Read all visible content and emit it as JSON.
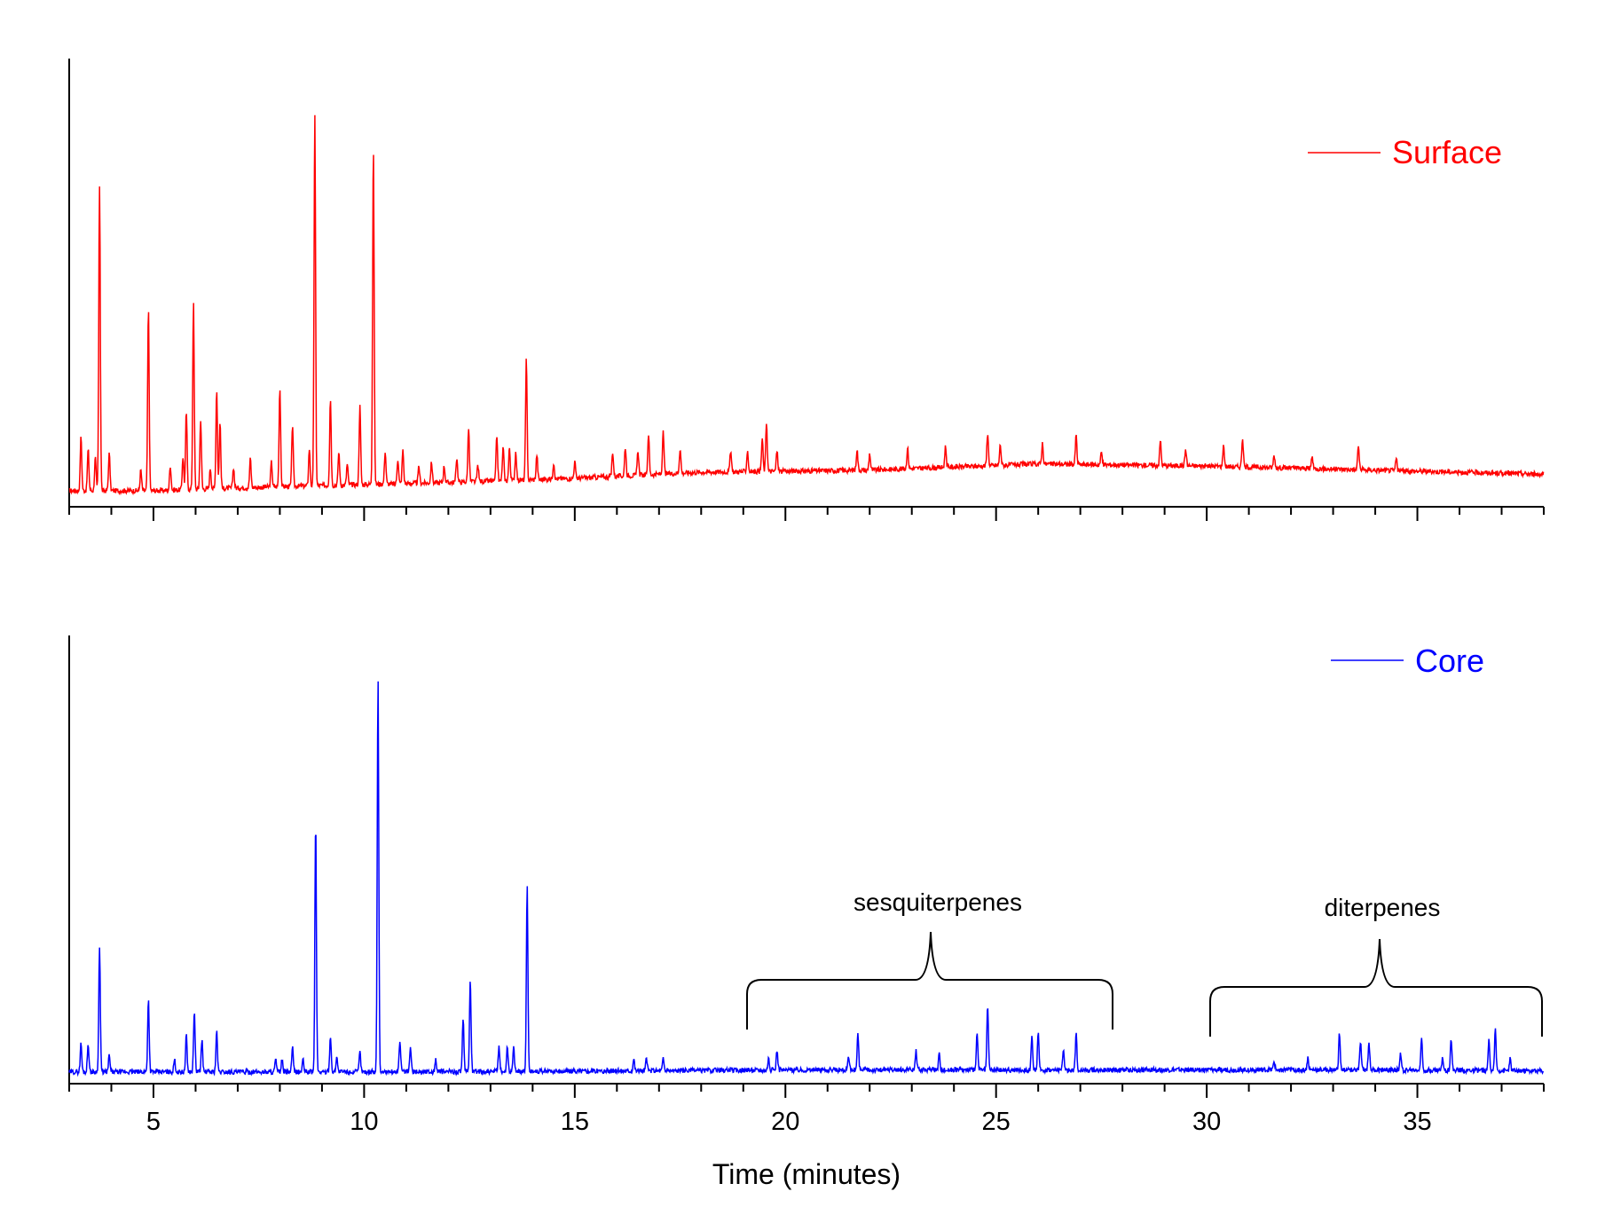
{
  "chart_data": [
    {
      "type": "line",
      "panel": "top",
      "series": [
        {
          "name": "Surface",
          "color": "#ff0000",
          "baseline": [
            [
              3.0,
              0.02
            ],
            [
              5,
              0.02
            ],
            [
              8,
              0.03
            ],
            [
              12,
              0.04
            ],
            [
              15,
              0.05
            ],
            [
              18,
              0.065
            ],
            [
              22,
              0.07
            ],
            [
              26,
              0.085
            ],
            [
              30,
              0.08
            ],
            [
              34,
              0.07
            ],
            [
              38,
              0.06
            ]
          ],
          "peaks": [
            [
              3.28,
              0.13
            ],
            [
              3.45,
              0.1
            ],
            [
              3.62,
              0.08
            ],
            [
              3.72,
              0.74
            ],
            [
              3.95,
              0.09
            ],
            [
              4.7,
              0.05
            ],
            [
              4.88,
              0.44
            ],
            [
              5.4,
              0.06
            ],
            [
              5.7,
              0.08
            ],
            [
              5.78,
              0.19
            ],
            [
              5.95,
              0.45
            ],
            [
              6.12,
              0.17
            ],
            [
              6.35,
              0.05
            ],
            [
              6.5,
              0.24
            ],
            [
              6.58,
              0.16
            ],
            [
              6.9,
              0.05
            ],
            [
              7.3,
              0.07
            ],
            [
              7.8,
              0.06
            ],
            [
              8.0,
              0.24
            ],
            [
              8.3,
              0.15
            ],
            [
              8.7,
              0.09
            ],
            [
              8.83,
              0.9
            ],
            [
              9.2,
              0.21
            ],
            [
              9.4,
              0.08
            ],
            [
              9.6,
              0.05
            ],
            [
              9.9,
              0.19
            ],
            [
              10.22,
              0.82
            ],
            [
              10.5,
              0.08
            ],
            [
              10.8,
              0.06
            ],
            [
              10.92,
              0.08
            ],
            [
              11.3,
              0.04
            ],
            [
              11.6,
              0.05
            ],
            [
              11.9,
              0.04
            ],
            [
              12.2,
              0.06
            ],
            [
              12.48,
              0.13
            ],
            [
              12.7,
              0.04
            ],
            [
              13.15,
              0.11
            ],
            [
              13.3,
              0.08
            ],
            [
              13.45,
              0.08
            ],
            [
              13.6,
              0.07
            ],
            [
              13.85,
              0.29
            ],
            [
              14.1,
              0.06
            ],
            [
              14.5,
              0.04
            ],
            [
              15.0,
              0.04
            ],
            [
              15.9,
              0.06
            ],
            [
              16.2,
              0.07
            ],
            [
              16.5,
              0.06
            ],
            [
              16.75,
              0.1
            ],
            [
              17.1,
              0.1
            ],
            [
              17.5,
              0.06
            ],
            [
              18.7,
              0.05
            ],
            [
              19.1,
              0.05
            ],
            [
              19.45,
              0.08
            ],
            [
              19.55,
              0.12
            ],
            [
              19.8,
              0.05
            ],
            [
              21.7,
              0.05
            ],
            [
              22.0,
              0.04
            ],
            [
              22.9,
              0.05
            ],
            [
              23.8,
              0.05
            ],
            [
              24.8,
              0.08
            ],
            [
              25.1,
              0.05
            ],
            [
              26.1,
              0.05
            ],
            [
              26.9,
              0.07
            ],
            [
              27.5,
              0.03
            ],
            [
              28.9,
              0.06
            ],
            [
              29.5,
              0.04
            ],
            [
              30.4,
              0.05
            ],
            [
              30.85,
              0.07
            ],
            [
              31.6,
              0.03
            ],
            [
              32.5,
              0.03
            ],
            [
              33.6,
              0.06
            ],
            [
              34.5,
              0.03
            ]
          ]
        }
      ],
      "xlim": [
        3,
        38
      ],
      "ylim": [
        0,
        1
      ]
    },
    {
      "type": "line",
      "panel": "bottom",
      "series": [
        {
          "name": "Core",
          "color": "#0000ff",
          "baseline": [
            [
              3.0,
              0.01
            ],
            [
              10,
              0.01
            ],
            [
              15,
              0.012
            ],
            [
              20,
              0.015
            ],
            [
              25,
              0.015
            ],
            [
              30,
              0.015
            ],
            [
              35,
              0.015
            ],
            [
              38,
              0.012
            ]
          ],
          "peaks": [
            [
              3.28,
              0.07
            ],
            [
              3.45,
              0.07
            ],
            [
              3.72,
              0.31
            ],
            [
              3.95,
              0.04
            ],
            [
              4.88,
              0.18
            ],
            [
              5.5,
              0.03
            ],
            [
              5.78,
              0.09
            ],
            [
              5.97,
              0.15
            ],
            [
              6.15,
              0.08
            ],
            [
              6.5,
              0.1
            ],
            [
              7.9,
              0.03
            ],
            [
              8.05,
              0.03
            ],
            [
              8.3,
              0.06
            ],
            [
              8.55,
              0.03
            ],
            [
              8.85,
              0.62
            ],
            [
              9.2,
              0.09
            ],
            [
              9.35,
              0.04
            ],
            [
              9.9,
              0.05
            ],
            [
              10.33,
              0.98
            ],
            [
              10.85,
              0.08
            ],
            [
              11.1,
              0.06
            ],
            [
              11.7,
              0.03
            ],
            [
              12.35,
              0.13
            ],
            [
              12.52,
              0.23
            ],
            [
              13.2,
              0.06
            ],
            [
              13.4,
              0.06
            ],
            [
              13.55,
              0.06
            ],
            [
              13.87,
              0.46
            ],
            [
              16.4,
              0.03
            ],
            [
              16.7,
              0.03
            ],
            [
              17.1,
              0.03
            ],
            [
              19.6,
              0.03
            ],
            [
              19.8,
              0.05
            ],
            [
              21.5,
              0.03
            ],
            [
              21.72,
              0.09
            ],
            [
              23.1,
              0.05
            ],
            [
              23.65,
              0.04
            ],
            [
              24.55,
              0.09
            ],
            [
              24.8,
              0.16
            ],
            [
              25.85,
              0.08
            ],
            [
              26.0,
              0.09
            ],
            [
              26.6,
              0.05
            ],
            [
              26.9,
              0.09
            ],
            [
              31.6,
              0.02
            ],
            [
              32.4,
              0.03
            ],
            [
              33.15,
              0.09
            ],
            [
              33.65,
              0.07
            ],
            [
              33.85,
              0.07
            ],
            [
              34.6,
              0.04
            ],
            [
              35.1,
              0.08
            ],
            [
              35.6,
              0.03
            ],
            [
              35.8,
              0.08
            ],
            [
              36.7,
              0.08
            ],
            [
              36.85,
              0.1
            ],
            [
              37.2,
              0.03
            ]
          ]
        }
      ],
      "xlim": [
        3,
        38
      ],
      "ylim": [
        0,
        1
      ]
    }
  ],
  "legend": {
    "surface_label": "Surface",
    "core_label": "Core"
  },
  "axes": {
    "xlabel": "Time (minutes)",
    "xticks": [
      5,
      10,
      15,
      20,
      25,
      30,
      35
    ]
  },
  "annotations": {
    "sesquiterpenes": {
      "label": "sesquiterpenes",
      "range": [
        19,
        27.8
      ]
    },
    "diterpenes": {
      "label": "diterpenes",
      "range": [
        30,
        37.9
      ]
    }
  }
}
